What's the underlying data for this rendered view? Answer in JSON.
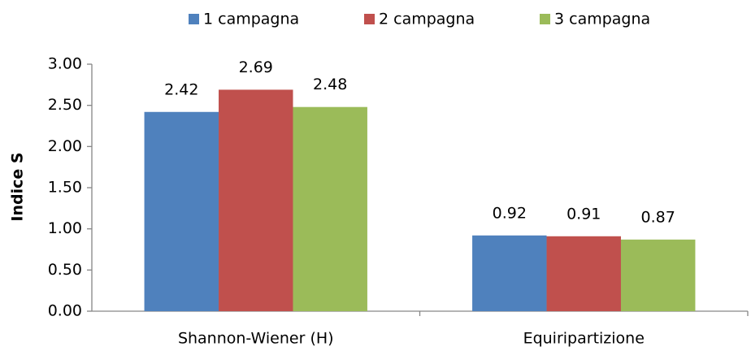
{
  "chart_data": {
    "type": "bar",
    "y_label": "Indice S",
    "categories": [
      "Shannon-Wiener (H)",
      "Equiripartizione"
    ],
    "series": [
      {
        "name": "1 campagna",
        "color": "#4f81bd",
        "values": [
          2.42,
          0.92
        ]
      },
      {
        "name": "2 campagna",
        "color": "#c0504d",
        "values": [
          2.69,
          0.91
        ]
      },
      {
        "name": "3 campagna",
        "color": "#9bbb59",
        "values": [
          2.48,
          0.87
        ]
      }
    ],
    "ylim": [
      0,
      3
    ],
    "yticks": [
      {
        "value": 0,
        "label": "0.00"
      },
      {
        "value": 0.5,
        "label": "0.50"
      },
      {
        "value": 1,
        "label": "1.00"
      },
      {
        "value": 1.5,
        "label": "1.50"
      },
      {
        "value": 2,
        "label": "2.00"
      },
      {
        "value": 2.5,
        "label": "2.50"
      },
      {
        "value": 3,
        "label": "3.00"
      }
    ],
    "grid": false,
    "legend": "top"
  }
}
